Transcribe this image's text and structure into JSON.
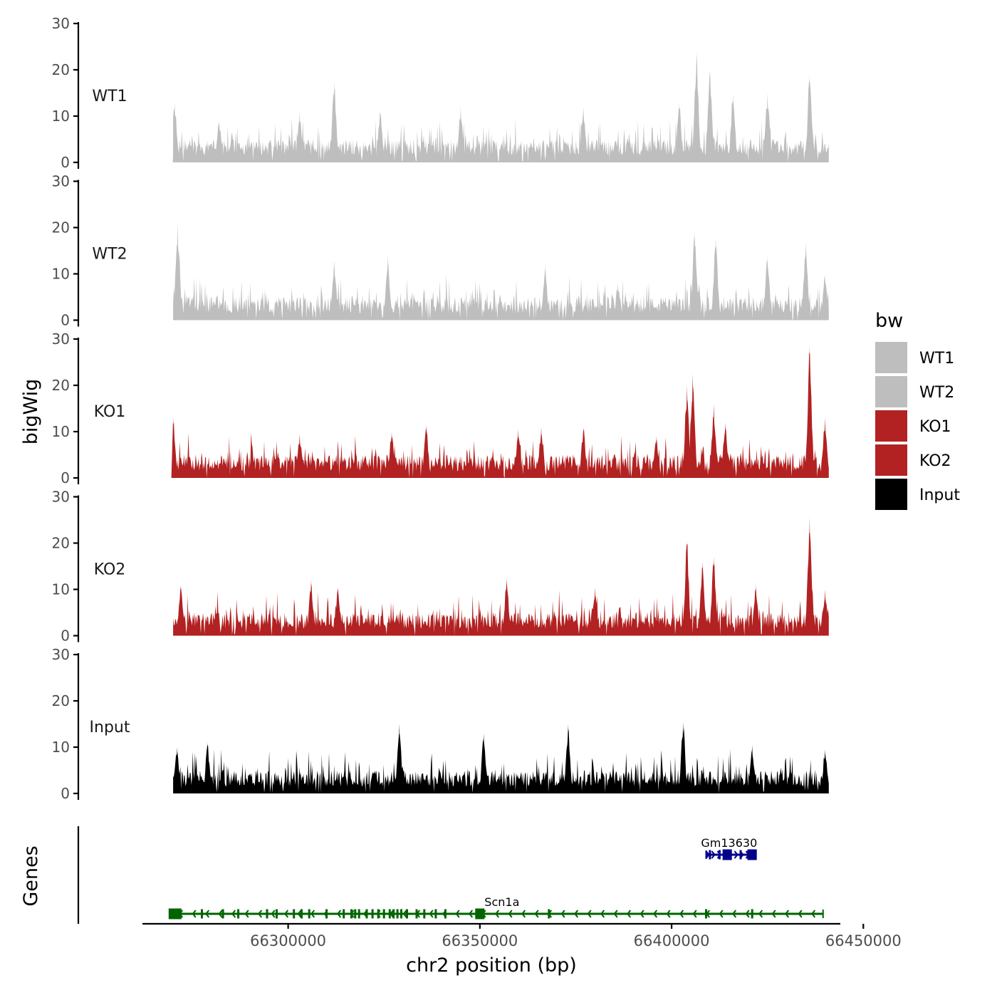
{
  "chart_data": {
    "type": "area",
    "ylabel": "bigWig",
    "genes_label": "Genes",
    "xlabel": "chr2 position (bp)",
    "x_range": [
      66262000,
      66444000
    ],
    "data_x_range": [
      66270000,
      66441000
    ],
    "xticks": [
      66300000,
      66350000,
      66400000,
      66450000
    ],
    "xtick_labels": [
      "66300000",
      "66350000",
      "66400000",
      "66450000"
    ],
    "ylim": [
      0,
      30
    ],
    "yticks": [
      0,
      10,
      20,
      30
    ],
    "ytick_labels": [
      "0",
      "10",
      "20",
      "30"
    ],
    "legend": {
      "title": "bw",
      "entries": [
        {
          "label": "WT1",
          "color": "#bebebe"
        },
        {
          "label": "WT2",
          "color": "#bebebe"
        },
        {
          "label": "KO1",
          "color": "#b22222"
        },
        {
          "label": "KO2",
          "color": "#b22222"
        },
        {
          "label": "Input",
          "color": "#000000"
        }
      ]
    },
    "series": [
      {
        "name": "WT1",
        "color": "#bebebe",
        "peaks": [
          {
            "x": 66270400,
            "y": 13
          },
          {
            "x": 66282000,
            "y": 9
          },
          {
            "x": 66303000,
            "y": 11
          },
          {
            "x": 66312000,
            "y": 17.5
          },
          {
            "x": 66324000,
            "y": 11
          },
          {
            "x": 66345000,
            "y": 12
          },
          {
            "x": 66377000,
            "y": 12
          },
          {
            "x": 66402000,
            "y": 13
          },
          {
            "x": 66406500,
            "y": 24
          },
          {
            "x": 66410000,
            "y": 20
          },
          {
            "x": 66416000,
            "y": 15
          },
          {
            "x": 66425000,
            "y": 15
          },
          {
            "x": 66436000,
            "y": 19
          }
        ]
      },
      {
        "name": "WT2",
        "color": "#bebebe",
        "peaks": [
          {
            "x": 66271200,
            "y": 21
          },
          {
            "x": 66312000,
            "y": 13
          },
          {
            "x": 66326000,
            "y": 14
          },
          {
            "x": 66367000,
            "y": 12
          },
          {
            "x": 66386000,
            "y": 8
          },
          {
            "x": 66406000,
            "y": 19.5
          },
          {
            "x": 66411500,
            "y": 18
          },
          {
            "x": 66425000,
            "y": 14
          },
          {
            "x": 66435000,
            "y": 17
          },
          {
            "x": 66440000,
            "y": 10
          }
        ]
      },
      {
        "name": "KO1",
        "color": "#b22222",
        "peaks": [
          {
            "x": 66270000,
            "y": 13
          },
          {
            "x": 66303000,
            "y": 9.5
          },
          {
            "x": 66327000,
            "y": 10
          },
          {
            "x": 66336000,
            "y": 11.5
          },
          {
            "x": 66360000,
            "y": 10.5
          },
          {
            "x": 66366000,
            "y": 11
          },
          {
            "x": 66377000,
            "y": 11
          },
          {
            "x": 66396000,
            "y": 9
          },
          {
            "x": 66404000,
            "y": 20
          },
          {
            "x": 66405500,
            "y": 22.5
          },
          {
            "x": 66411000,
            "y": 16
          },
          {
            "x": 66414000,
            "y": 12
          },
          {
            "x": 66436000,
            "y": 28.5
          },
          {
            "x": 66440000,
            "y": 13
          }
        ]
      },
      {
        "name": "KO2",
        "color": "#b22222",
        "peaks": [
          {
            "x": 66272000,
            "y": 11
          },
          {
            "x": 66306000,
            "y": 12
          },
          {
            "x": 66313000,
            "y": 10.5
          },
          {
            "x": 66357000,
            "y": 12.5
          },
          {
            "x": 66380000,
            "y": 10.5
          },
          {
            "x": 66404000,
            "y": 20.5
          },
          {
            "x": 66408000,
            "y": 16
          },
          {
            "x": 66411000,
            "y": 17
          },
          {
            "x": 66422000,
            "y": 11
          },
          {
            "x": 66436000,
            "y": 25.5
          },
          {
            "x": 66440000,
            "y": 10
          }
        ]
      },
      {
        "name": "Input",
        "color": "#000000",
        "peaks": [
          {
            "x": 66271000,
            "y": 10
          },
          {
            "x": 66279000,
            "y": 11
          },
          {
            "x": 66329000,
            "y": 15
          },
          {
            "x": 66351000,
            "y": 13
          },
          {
            "x": 66373000,
            "y": 15
          },
          {
            "x": 66403000,
            "y": 15.5
          },
          {
            "x": 66421000,
            "y": 10.5
          },
          {
            "x": 66440000,
            "y": 9.5
          }
        ]
      }
    ],
    "genes": [
      {
        "name": "Scn1a",
        "strand": "-",
        "color": "#006400",
        "start": 66270000,
        "end": 66439500,
        "label_x": 66350000,
        "exons": [
          66270500,
          66277500,
          66283000,
          66287000,
          66294500,
          66297000,
          66301500,
          66303500,
          66305500,
          66310000,
          66314500,
          66316500,
          66317500,
          66318500,
          66320500,
          66322000,
          66323500,
          66325000,
          66326500,
          66327500,
          66328500,
          66329500,
          66331000,
          66333500,
          66335500,
          66338500,
          66341000,
          66350000,
          66368000,
          66409000,
          66421000
        ]
      },
      {
        "name": "Gm13630",
        "strand": "+",
        "color": "#00008b",
        "start": 66409000,
        "end": 66421500,
        "label_x": 66415000,
        "exons": [
          66410000,
          66412500,
          66414500,
          66418000,
          66420000,
          66421000
        ]
      }
    ]
  }
}
